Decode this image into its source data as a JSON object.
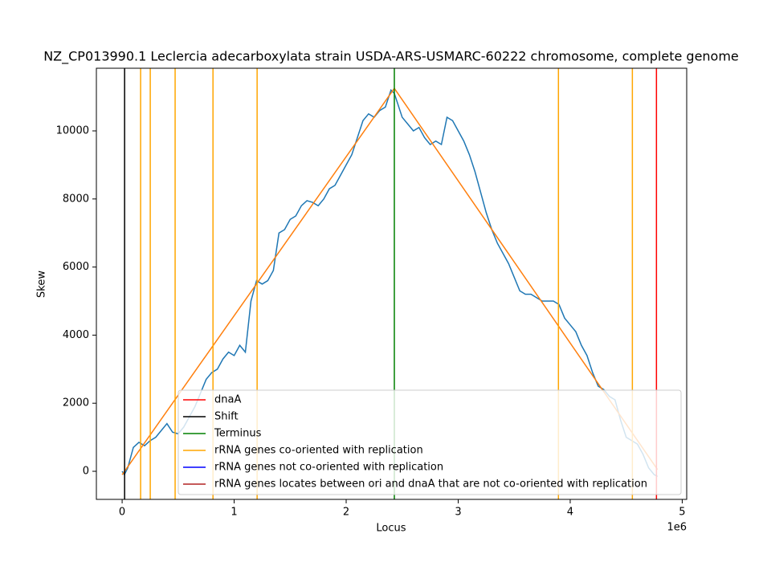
{
  "chart_data": {
    "type": "line",
    "title": "NZ_CP013990.1 Leclercia adecarboxylata strain USDA-ARS-USMARC-60222 chromosome, complete genome",
    "xlabel": "Locus",
    "ylabel": "Skew",
    "x_offset_label": "1e6",
    "xlim": [
      -230000,
      5040000
    ],
    "ylim": [
      -825,
      11840
    ],
    "xticks": [
      {
        "value": 0,
        "label": "0"
      },
      {
        "value": 1000000,
        "label": "1"
      },
      {
        "value": 2000000,
        "label": "2"
      },
      {
        "value": 3000000,
        "label": "3"
      },
      {
        "value": 4000000,
        "label": "4"
      },
      {
        "value": 5000000,
        "label": "5"
      }
    ],
    "yticks": [
      0,
      2000,
      4000,
      6000,
      8000,
      10000
    ],
    "series": [
      {
        "color": "#1f77b4",
        "x": [
          0,
          20000,
          50000,
          100000,
          150000,
          200000,
          250000,
          300000,
          350000,
          400000,
          450000,
          500000,
          550000,
          600000,
          650000,
          700000,
          750000,
          800000,
          850000,
          900000,
          950000,
          1000000,
          1050000,
          1100000,
          1150000,
          1200000,
          1250000,
          1300000,
          1350000,
          1400000,
          1450000,
          1500000,
          1550000,
          1600000,
          1650000,
          1700000,
          1750000,
          1800000,
          1850000,
          1900000,
          1950000,
          2000000,
          2050000,
          2100000,
          2150000,
          2200000,
          2250000,
          2300000,
          2350000,
          2400000,
          2430000,
          2500000,
          2550000,
          2600000,
          2650000,
          2700000,
          2750000,
          2800000,
          2850000,
          2900000,
          2950000,
          3000000,
          3050000,
          3100000,
          3150000,
          3200000,
          3250000,
          3300000,
          3350000,
          3400000,
          3450000,
          3500000,
          3550000,
          3600000,
          3650000,
          3700000,
          3750000,
          3800000,
          3850000,
          3900000,
          3950000,
          4000000,
          4050000,
          4100000,
          4150000,
          4200000,
          4250000,
          4300000,
          4350000,
          4400000,
          4450000,
          4500000,
          4550000,
          4600000,
          4650000,
          4700000,
          4750000,
          4780000
        ],
        "values": [
          0,
          -100,
          100,
          700,
          850,
          750,
          900,
          1000,
          1200,
          1400,
          1150,
          1100,
          1300,
          1600,
          1900,
          2300,
          2700,
          2900,
          3000,
          3300,
          3500,
          3400,
          3700,
          3500,
          5000,
          5600,
          5500,
          5600,
          5900,
          7000,
          7100,
          7400,
          7500,
          7800,
          7950,
          7900,
          7800,
          8000,
          8300,
          8400,
          8700,
          9000,
          9300,
          9800,
          10300,
          10500,
          10400,
          10600,
          10700,
          11200,
          11100,
          10400,
          10200,
          10000,
          10100,
          9800,
          9600,
          9700,
          9600,
          10400,
          10300,
          10000,
          9700,
          9300,
          8800,
          8200,
          7600,
          7100,
          6700,
          6400,
          6100,
          5700,
          5300,
          5200,
          5200,
          5100,
          5000,
          5000,
          5000,
          4900,
          4500,
          4300,
          4100,
          3700,
          3400,
          2900,
          2500,
          2400,
          2200,
          2100,
          1500,
          1000,
          900,
          800,
          500,
          100,
          -100,
          -150
        ]
      },
      {
        "color": "#ff7f0e",
        "x": [
          0,
          2430000,
          4780000
        ],
        "values": [
          -100,
          11250,
          50
        ]
      }
    ],
    "markers": [
      {
        "name": "dnaA",
        "color": "#ff0000",
        "positions": [
          4770000
        ]
      },
      {
        "name": "Shift",
        "color": "#000000",
        "positions": [
          22000
        ]
      },
      {
        "name": "Terminus",
        "color": "#008000",
        "positions": [
          2430000
        ]
      },
      {
        "name": "rRNA genes co-oriented with replication",
        "color": "#ffa500",
        "positions": [
          165000,
          251000,
          473000,
          811000,
          1205000,
          3895000,
          4555000
        ]
      },
      {
        "name": "rRNA genes not co-oriented with replication",
        "color": "#0000ff",
        "positions": []
      },
      {
        "name": "rRNA genes locates between ori and dnaA that are not co-oriented with replication",
        "color": "#b22222",
        "positions": []
      }
    ]
  }
}
